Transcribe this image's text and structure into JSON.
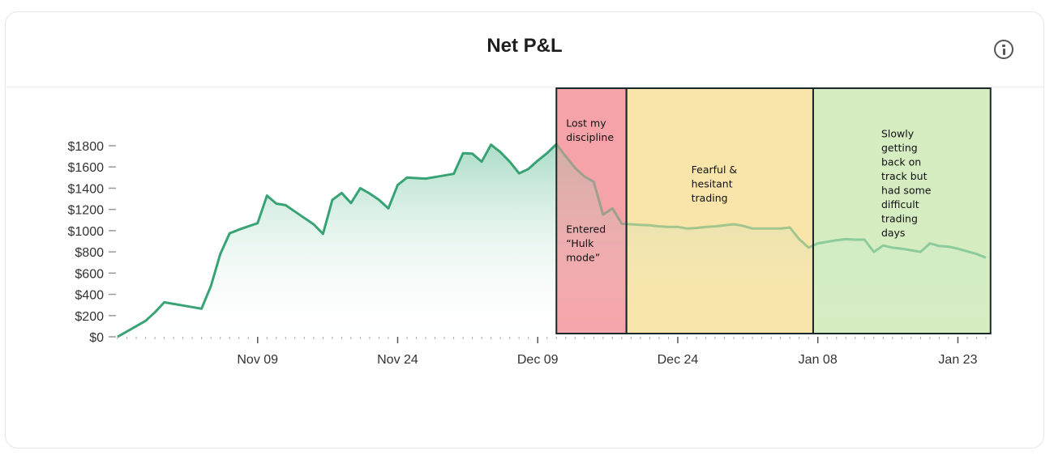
{
  "card": {
    "title": "Net P&L",
    "info_icon": "info-circle-icon"
  },
  "chart_data": {
    "type": "area",
    "title": "Net P&L",
    "xlabel": "",
    "ylabel": "",
    "ylim": [
      0,
      1800
    ],
    "y_ticks": [
      "$0",
      "$200",
      "$400",
      "$600",
      "$800",
      "$1000",
      "$1200",
      "$1400",
      "$1600",
      "$1800"
    ],
    "y_tick_values": [
      0,
      200,
      400,
      600,
      800,
      1000,
      1200,
      1400,
      1600,
      1800
    ],
    "x_ticks": [
      "Nov 09",
      "Nov 24",
      "Dec 09",
      "Dec 24",
      "Jan 08",
      "Jan 23"
    ],
    "x_tick_days": [
      15,
      30,
      45,
      60,
      75,
      90
    ],
    "xlim_days": [
      0,
      93
    ],
    "x_day_labels_note": "",
    "colors": {
      "line": "#2e9e6e",
      "fill_top": "#7cc9a8",
      "fill_bottom": "#ffffff",
      "axis_tick": "#999999"
    },
    "series": [
      {
        "points": [
          [
            0,
            0
          ],
          [
            1,
            50
          ],
          [
            2,
            100
          ],
          [
            3,
            150
          ],
          [
            4,
            230
          ],
          [
            5,
            325
          ],
          [
            6,
            310
          ],
          [
            7,
            295
          ],
          [
            8,
            280
          ],
          [
            9,
            265
          ],
          [
            10,
            480
          ],
          [
            11,
            780
          ],
          [
            12,
            975
          ],
          [
            13,
            1010
          ],
          [
            14,
            1040
          ],
          [
            15,
            1070
          ],
          [
            16,
            1330
          ],
          [
            17,
            1255
          ],
          [
            18,
            1240
          ],
          [
            19,
            1180
          ],
          [
            20,
            1120
          ],
          [
            21,
            1060
          ],
          [
            22,
            970
          ],
          [
            23,
            1290
          ],
          [
            24,
            1355
          ],
          [
            25,
            1260
          ],
          [
            26,
            1400
          ],
          [
            27,
            1350
          ],
          [
            28,
            1290
          ],
          [
            29,
            1210
          ],
          [
            30,
            1430
          ],
          [
            31,
            1500
          ],
          [
            32,
            1495
          ],
          [
            33,
            1490
          ],
          [
            34,
            1505
          ],
          [
            35,
            1520
          ],
          [
            36,
            1535
          ],
          [
            37,
            1730
          ],
          [
            38,
            1725
          ],
          [
            39,
            1650
          ],
          [
            40,
            1810
          ],
          [
            41,
            1740
          ],
          [
            42,
            1650
          ],
          [
            43,
            1540
          ],
          [
            44,
            1580
          ],
          [
            45,
            1660
          ],
          [
            46,
            1730
          ],
          [
            47,
            1815
          ],
          [
            48,
            1700
          ],
          [
            49,
            1590
          ],
          [
            50,
            1510
          ],
          [
            51,
            1460
          ],
          [
            52,
            1150
          ],
          [
            53,
            1210
          ],
          [
            54,
            1065
          ],
          [
            55,
            1060
          ],
          [
            56,
            1055
          ],
          [
            57,
            1050
          ],
          [
            58,
            1040
          ],
          [
            59,
            1035
          ],
          [
            60,
            1035
          ],
          [
            61,
            1020
          ],
          [
            62,
            1025
          ],
          [
            63,
            1035
          ],
          [
            64,
            1040
          ],
          [
            65,
            1050
          ],
          [
            66,
            1060
          ],
          [
            67,
            1045
          ],
          [
            68,
            1020
          ],
          [
            69,
            1020
          ],
          [
            70,
            1020
          ],
          [
            71,
            1020
          ],
          [
            72,
            1030
          ],
          [
            73,
            920
          ],
          [
            74,
            840
          ],
          [
            75,
            880
          ],
          [
            76,
            895
          ],
          [
            77,
            910
          ],
          [
            78,
            920
          ],
          [
            79,
            915
          ],
          [
            80,
            915
          ],
          [
            81,
            800
          ],
          [
            82,
            860
          ],
          [
            83,
            840
          ],
          [
            84,
            830
          ],
          [
            85,
            815
          ],
          [
            86,
            800
          ],
          [
            87,
            880
          ],
          [
            88,
            855
          ],
          [
            89,
            850
          ],
          [
            90,
            830
          ],
          [
            91,
            805
          ],
          [
            92,
            780
          ],
          [
            93,
            745
          ]
        ]
      }
    ],
    "annotations": [
      {
        "id": "discipline",
        "x_range_days": [
          47,
          54.5
        ],
        "color": "#f4a0a6",
        "texts": [
          {
            "lines": [
              "Lost my",
              "discipline"
            ],
            "at_value": 1980
          },
          {
            "lines": [
              "Entered",
              "“Hulk",
              "mode”"
            ],
            "at_value": 980
          }
        ]
      },
      {
        "id": "fearful",
        "x_range_days": [
          54.5,
          74.5
        ],
        "color": "#f9e4a6",
        "texts": [
          {
            "lines": [
              "Fearful &",
              "hesitant",
              "trading"
            ],
            "at_value": 1540
          }
        ]
      },
      {
        "id": "recovery",
        "x_range_days": [
          74.5,
          93.5
        ],
        "color": "#d4ecbe",
        "texts": [
          {
            "lines": [
              "Slowly",
              "getting",
              "back on",
              "track but",
              "had some",
              "difficult",
              "trading",
              "days"
            ],
            "at_value": 1880
          }
        ]
      }
    ]
  }
}
